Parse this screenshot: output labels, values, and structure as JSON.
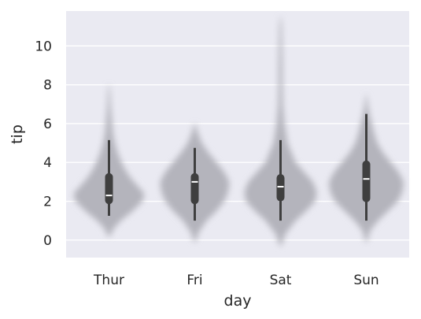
{
  "chart_data": {
    "type": "violin",
    "title": "",
    "xlabel": "day",
    "ylabel": "tip",
    "categories": [
      "Thur",
      "Fri",
      "Sat",
      "Sun"
    ],
    "ylim": [
      -0.9,
      11.8
    ],
    "yticks": [
      0,
      2,
      4,
      6,
      8,
      10
    ],
    "grid": true,
    "colors": {
      "background": "#eaeaf2",
      "grid": "#ffffff",
      "violin": "#b4b4bc",
      "box": "#3f3f3f",
      "median": "#ffffff",
      "text": "#262626"
    },
    "violins": [
      {
        "category": "Thur",
        "density_y": [
          0.2,
          0.6,
          1.0,
          1.5,
          2.0,
          2.4,
          2.8,
          3.2,
          3.6,
          4.0,
          4.5,
          5.0,
          5.5,
          6.0,
          6.5,
          7.0,
          7.5,
          8.0
        ],
        "density_w": [
          0.03,
          0.12,
          0.3,
          0.6,
          0.85,
          0.9,
          0.72,
          0.55,
          0.42,
          0.32,
          0.22,
          0.15,
          0.1,
          0.08,
          0.06,
          0.04,
          0.03,
          0.01
        ],
        "whisker_low": 1.25,
        "q1": 1.85,
        "median": 2.3,
        "q3": 3.45,
        "whisker_high": 5.15
      },
      {
        "category": "Fri",
        "density_y": [
          -0.1,
          0.4,
          1.0,
          1.5,
          2.0,
          2.5,
          3.0,
          3.5,
          4.0,
          4.5,
          5.0,
          5.5,
          6.0
        ],
        "density_w": [
          0.02,
          0.1,
          0.3,
          0.55,
          0.75,
          0.85,
          0.88,
          0.75,
          0.55,
          0.35,
          0.18,
          0.08,
          0.01
        ],
        "whisker_low": 1.0,
        "q1": 1.85,
        "median": 3.0,
        "q3": 3.45,
        "whisker_high": 4.75
      },
      {
        "category": "Sat",
        "density_y": [
          -0.3,
          0.3,
          1.0,
          1.5,
          2.0,
          2.5,
          3.0,
          3.5,
          4.0,
          5.0,
          6.0,
          7.0,
          8.0,
          9.0,
          10.0,
          11.0,
          11.5
        ],
        "density_w": [
          0.02,
          0.12,
          0.38,
          0.65,
          0.88,
          0.92,
          0.82,
          0.6,
          0.38,
          0.18,
          0.1,
          0.06,
          0.05,
          0.05,
          0.04,
          0.03,
          0.01
        ],
        "whisker_low": 1.0,
        "q1": 2.0,
        "median": 2.75,
        "q3": 3.4,
        "whisker_high": 5.15
      },
      {
        "category": "Sun",
        "density_y": [
          -0.1,
          0.5,
          1.0,
          1.5,
          2.0,
          2.5,
          3.0,
          3.5,
          4.0,
          4.5,
          5.0,
          5.5,
          6.0,
          6.5,
          7.0,
          7.5
        ],
        "density_w": [
          0.02,
          0.1,
          0.3,
          0.55,
          0.8,
          0.92,
          0.95,
          0.82,
          0.62,
          0.42,
          0.28,
          0.2,
          0.14,
          0.08,
          0.04,
          0.01
        ],
        "whisker_low": 1.0,
        "q1": 1.95,
        "median": 3.15,
        "q3": 4.1,
        "whisker_high": 6.5
      }
    ]
  }
}
